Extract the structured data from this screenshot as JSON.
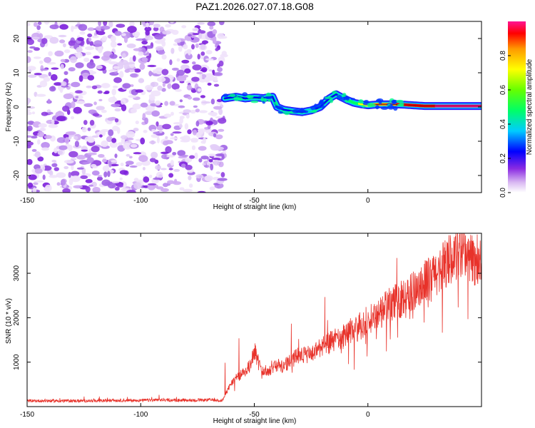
{
  "title": "PAZ1.2026.027.07.18.G08",
  "chart_data": [
    {
      "type": "heatmap",
      "name": "spectrogram",
      "xlabel": "Height of straight line (km)",
      "ylabel": "Frequency (Hz)",
      "xlim": [
        -150,
        50
      ],
      "ylim": [
        -25,
        25
      ],
      "xticks": [
        -150,
        -100,
        -50,
        0
      ],
      "xtick_labels": [
        "-150",
        "-100",
        "-50",
        "0"
      ],
      "yticks": [
        -20,
        -10,
        0,
        10,
        20
      ],
      "ytick_labels": [
        "-20",
        "-10",
        "0",
        "10",
        "20"
      ],
      "colorbar": {
        "label": "Normalized spectral amplitude",
        "range": [
          0,
          1
        ],
        "ticks": [
          0,
          0.2,
          0.4,
          0.6,
          0.8
        ],
        "tick_labels": [
          "0.0",
          "0.2",
          "0.4",
          "0.6",
          "0.8"
        ]
      },
      "noise_region_x": [
        -150,
        -63
      ],
      "ridge": {
        "x": [
          -63,
          -58,
          -54,
          -50,
          -46,
          -42,
          -40,
          -37,
          -33,
          -29,
          -25,
          -21,
          -17,
          -14,
          -12,
          -9,
          -6,
          -3,
          0,
          5,
          10,
          15,
          20,
          25,
          30,
          35,
          40,
          45,
          50
        ],
        "y": [
          2.5,
          3.0,
          2.5,
          2.8,
          2.6,
          3.0,
          0.0,
          -0.8,
          -1.2,
          -1.5,
          -1.0,
          0.0,
          2.5,
          3.7,
          3.0,
          2.0,
          1.2,
          0.8,
          0.5,
          0.8,
          0.8,
          0.7,
          0.5,
          0.3,
          0.3,
          0.3,
          0.3,
          0.3,
          0.3
        ],
        "amp": [
          0.35,
          0.3,
          0.3,
          0.3,
          0.35,
          0.3,
          0.3,
          0.35,
          0.35,
          0.4,
          0.45,
          0.4,
          0.35,
          0.4,
          0.45,
          0.55,
          0.6,
          0.7,
          0.8,
          0.85,
          0.9,
          0.95,
          0.95,
          0.97,
          1.0,
          1.0,
          1.0,
          1.0,
          1.0
        ]
      }
    },
    {
      "type": "line",
      "name": "snr",
      "xlabel": "Height of straight line (km)",
      "ylabel": "SNR (10 * v/v)",
      "xlim": [
        -150,
        50
      ],
      "ylim": [
        0,
        3900
      ],
      "xticks": [
        -150,
        -100,
        -50,
        0
      ],
      "xtick_labels": [
        "-150",
        "-100",
        "-50",
        "0"
      ],
      "yticks": [
        1000,
        2000,
        3000
      ],
      "ytick_labels": [
        "1000",
        "2000",
        "3000"
      ],
      "series": [
        {
          "name": "SNR",
          "color": "#e8322a",
          "x": [
            -150,
            -140,
            -130,
            -120,
            -110,
            -100,
            -90,
            -80,
            -70,
            -64,
            -61,
            -58,
            -55,
            -52,
            -50,
            -47,
            -44,
            -41,
            -38,
            -35,
            -32,
            -30,
            -27,
            -24,
            -21,
            -18,
            -15,
            -12,
            -9,
            -6,
            -3,
            0,
            3,
            6,
            10,
            14,
            18,
            22,
            26,
            30,
            34,
            38,
            42,
            46,
            50
          ],
          "values": [
            130,
            130,
            130,
            130,
            140,
            140,
            150,
            140,
            150,
            140,
            450,
            650,
            750,
            900,
            1300,
            800,
            800,
            950,
            900,
            1000,
            1100,
            1200,
            1150,
            1200,
            1350,
            1400,
            1500,
            1500,
            1700,
            1700,
            1800,
            1950,
            2000,
            2150,
            2300,
            2400,
            2550,
            2700,
            2850,
            3000,
            3200,
            3400,
            3550,
            3300,
            3300
          ]
        }
      ]
    }
  ],
  "colors": {
    "snr_line": "#e8322a",
    "axes": "#000000",
    "noise": "#9c63e6"
  }
}
